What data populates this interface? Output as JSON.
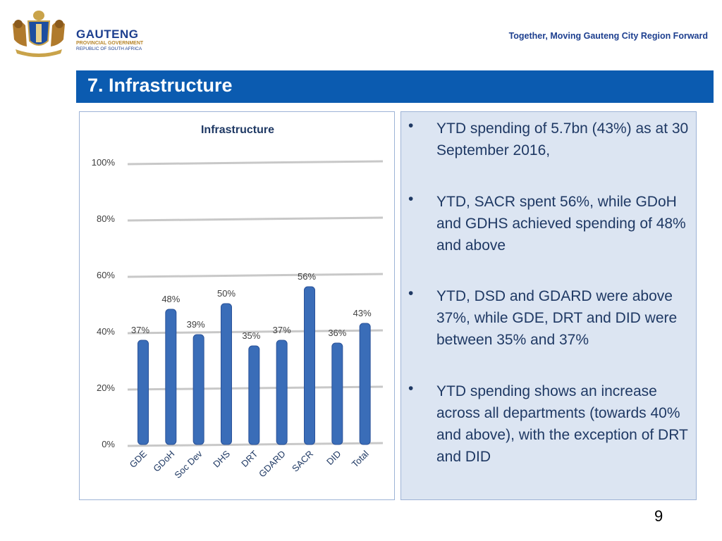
{
  "header": {
    "brand_name": "GAUTENG",
    "brand_sub": "PROVINCIAL GOVERNMENT",
    "brand_sub2": "REPUBLIC OF SOUTH AFRICA",
    "slogan": "Together, Moving Gauteng City Region Forward",
    "crest_icon": "gauteng-coat-of-arms-icon"
  },
  "title": "7. Infrastructure",
  "colors": {
    "title_bar": "#0b5bb0",
    "bar": "#3a6db8",
    "panel": "#dce5f2",
    "text": "#1f3964"
  },
  "chart_data": {
    "type": "bar",
    "title": "Infrastructure",
    "categories": [
      "GDE",
      "GDoH",
      "Soc Dev",
      "DHS",
      "DRT",
      "GDARD",
      "SACR",
      "DID",
      "Total"
    ],
    "values": [
      37,
      48,
      39,
      50,
      35,
      37,
      56,
      36,
      43
    ],
    "value_labels": [
      "37%",
      "48%",
      "39%",
      "50%",
      "35%",
      "37%",
      "56%",
      "36%",
      "43%"
    ],
    "yticks": [
      "0%",
      "20%",
      "40%",
      "60%",
      "80%",
      "100%"
    ],
    "ylim": [
      0,
      100
    ],
    "grid": true,
    "legend": "none"
  },
  "bullets": [
    {
      "marker": "•",
      "text": "YTD spending of 5.7bn (43%) as at 30 September 2016,"
    },
    {
      "marker": "•",
      "text": "YTD, SACR spent 56%, while GDoH and GDHS achieved spending of 48% and above"
    },
    {
      "marker": "•",
      "text": "YTD, DSD  and GDARD were above 37%, while GDE, DRT and DID were between 35% and 37%"
    },
    {
      "marker": "•",
      "text": "YTD spending shows an increase across all departments (towards 40% and above), with the exception of DRT and DID"
    }
  ],
  "page_number": "9"
}
